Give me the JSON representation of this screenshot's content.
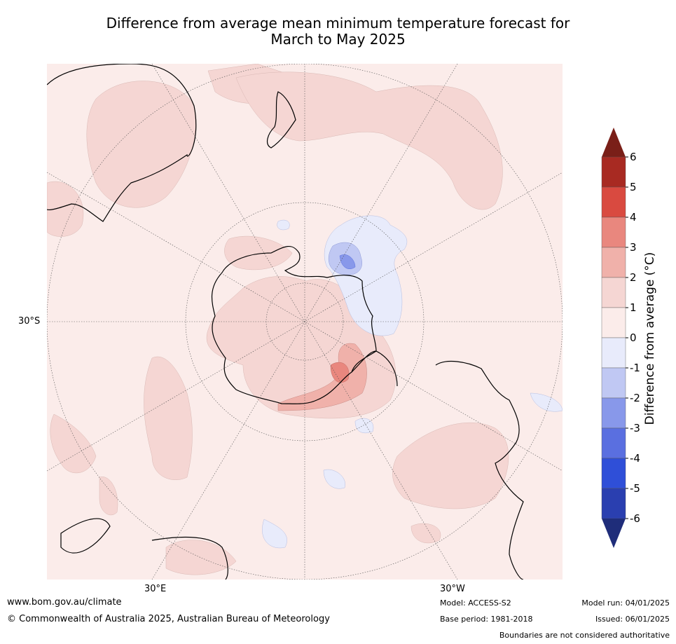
{
  "title_line1": "Difference from average mean minimum temperature forecast for",
  "title_line2": "March to May 2025",
  "map": {
    "projection": "south-polar-stereographic",
    "lat_label": "30°S",
    "lon_labels": [
      "30°E",
      "30°W"
    ]
  },
  "colorbar": {
    "label": "Difference from average (°C)",
    "ticks": [
      "6",
      "5",
      "4",
      "3",
      "2",
      "1",
      "0",
      "-1",
      "-2",
      "-3",
      "-4",
      "-5",
      "-6"
    ],
    "colors": [
      "#7a1f18",
      "#a82a22",
      "#d94a40",
      "#e9877e",
      "#f0b1aa",
      "#f5d6d3",
      "#fbecea",
      "#e8ebfb",
      "#c0c8f3",
      "#8898ea",
      "#5a6fe0",
      "#2f4fd8",
      "#2a3fb0",
      "#1f2d7a"
    ]
  },
  "footer": {
    "url": "www.bom.gov.au/climate",
    "copyright": "© Commonwealth of Australia 2025, Australian Bureau of Meteorology",
    "model": "Model: ACCESS-S2",
    "base_period": "Base period: 1981-2018",
    "model_run": "Model run: 04/01/2025",
    "issued": "Issued: 06/01/2025",
    "disclaimer": "Boundaries are not considered authoritative"
  }
}
